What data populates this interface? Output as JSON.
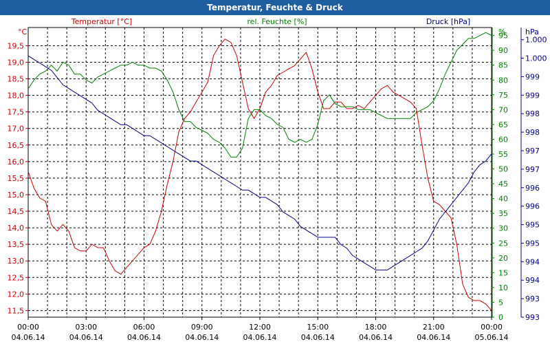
{
  "window": {
    "title": "Temperatur, Feuchte & Druck"
  },
  "chart_data": {
    "type": "line",
    "title": "Temperatur, Feuchte & Druck",
    "x_ticks": [
      {
        "time": "00:00",
        "date": "04.06.14"
      },
      {
        "time": "03:00",
        "date": "04.06.14"
      },
      {
        "time": "06:00",
        "date": "04.06.14"
      },
      {
        "time": "09:00",
        "date": "04.06.14"
      },
      {
        "time": "12:00",
        "date": "04.06.14"
      },
      {
        "time": "15:00",
        "date": "04.06.14"
      },
      {
        "time": "18:00",
        "date": "04.06.14"
      },
      {
        "time": "21:00",
        "date": "04.06.14"
      },
      {
        "time": "00:00",
        "date": "05.06.14"
      }
    ],
    "xlim": [
      0,
      24
    ],
    "axes": {
      "temperature": {
        "label": "Temperatur [°C]",
        "unit": "°C",
        "color": "#cc0000",
        "ylim": [
          11.3,
          20.05
        ],
        "ticks": [
          "11,5",
          "12,0",
          "12,5",
          "13,0",
          "13,5",
          "14,0",
          "14,5",
          "15,0",
          "15,5",
          "16,0",
          "16,5",
          "17,0",
          "17,5",
          "18,0",
          "18,5",
          "19,0",
          "19,5"
        ]
      },
      "humidity": {
        "label": "rel. Feuchte [%]",
        "unit": "%",
        "color": "#008000",
        "ylim": [
          0,
          97.7
        ],
        "ticks": [
          "0",
          "5",
          "10",
          "15",
          "20",
          "25",
          "30",
          "35",
          "40",
          "45",
          "50",
          "55",
          "60",
          "65",
          "70",
          "75",
          "80",
          "85",
          "90",
          "95"
        ]
      },
      "pressure": {
        "label": "Druck [hPa]",
        "unit": "hPa",
        "color": "#00008b",
        "ticks": [
          "993",
          "993",
          "994",
          "994",
          "995",
          "995",
          "996",
          "996",
          "997",
          "997",
          "998",
          "998",
          "999",
          "999",
          "1.000",
          "1.000"
        ]
      }
    },
    "series": [
      {
        "name": "Temperatur [°C]",
        "axis": "temperature",
        "color": "#cc0000",
        "x": [
          0,
          0.3,
          0.6,
          0.9,
          1.2,
          1.5,
          1.8,
          2.1,
          2.4,
          2.7,
          3.0,
          3.3,
          3.6,
          3.9,
          4.2,
          4.5,
          4.8,
          5.1,
          5.4,
          5.7,
          6.0,
          6.3,
          6.6,
          6.9,
          7.2,
          7.5,
          7.8,
          8.1,
          8.4,
          8.7,
          9.0,
          9.3,
          9.6,
          9.9,
          10.2,
          10.5,
          10.8,
          11.1,
          11.4,
          11.7,
          12.0,
          12.3,
          12.6,
          12.9,
          13.2,
          13.5,
          13.8,
          14.1,
          14.4,
          14.7,
          15.0,
          15.3,
          15.6,
          15.9,
          16.2,
          16.5,
          16.8,
          17.1,
          17.4,
          17.7,
          18.0,
          18.3,
          18.6,
          18.9,
          19.2,
          19.5,
          19.8,
          20.1,
          20.4,
          20.7,
          21.0,
          21.3,
          21.6,
          21.9,
          22.2,
          22.5,
          22.8,
          23.1,
          23.4,
          23.7,
          24.0
        ],
        "y": [
          15.7,
          15.2,
          14.9,
          14.8,
          14.1,
          13.9,
          14.1,
          13.9,
          13.4,
          13.3,
          13.3,
          13.5,
          13.4,
          13.4,
          13.0,
          12.7,
          12.6,
          12.8,
          13.0,
          13.2,
          13.4,
          13.5,
          13.9,
          14.5,
          15.3,
          16.0,
          16.9,
          17.3,
          17.5,
          17.8,
          18.1,
          18.4,
          19.2,
          19.5,
          19.7,
          19.6,
          19.2,
          18.4,
          17.6,
          17.3,
          17.6,
          18.1,
          18.3,
          18.6,
          18.7,
          18.8,
          18.9,
          19.1,
          19.3,
          18.8,
          18.1,
          17.6,
          17.6,
          17.8,
          17.8,
          17.6,
          17.6,
          17.7,
          17.6,
          17.8,
          18.0,
          18.2,
          18.3,
          18.1,
          18.0,
          17.9,
          17.8,
          17.6,
          16.5,
          15.5,
          14.8,
          14.7,
          14.5,
          14.3,
          13.5,
          12.3,
          11.9,
          11.8,
          11.8,
          11.7,
          11.5
        ]
      },
      {
        "name": "rel. Feuchte [%]",
        "axis": "humidity",
        "color": "#008000",
        "x": [
          0,
          0.3,
          0.6,
          0.9,
          1.2,
          1.5,
          1.8,
          2.1,
          2.4,
          2.7,
          3.0,
          3.3,
          3.6,
          3.9,
          4.2,
          4.5,
          4.8,
          5.1,
          5.4,
          5.7,
          6.0,
          6.3,
          6.6,
          6.9,
          7.2,
          7.5,
          7.8,
          8.1,
          8.4,
          8.7,
          9.0,
          9.3,
          9.6,
          9.9,
          10.2,
          10.5,
          10.8,
          11.1,
          11.4,
          11.7,
          12.0,
          12.3,
          12.6,
          12.9,
          13.2,
          13.5,
          13.8,
          14.1,
          14.4,
          14.7,
          15.0,
          15.3,
          15.6,
          15.9,
          16.2,
          16.5,
          16.8,
          17.1,
          17.4,
          17.7,
          18.0,
          18.3,
          18.6,
          18.9,
          19.2,
          19.5,
          19.8,
          20.1,
          20.4,
          20.7,
          21.0,
          21.3,
          21.6,
          21.9,
          22.2,
          22.5,
          22.8,
          23.1,
          23.4,
          23.7,
          24.0
        ],
        "y": [
          77,
          80,
          82,
          83,
          85,
          83,
          86,
          85,
          82,
          82,
          80,
          79,
          81,
          82,
          83,
          84,
          85,
          85,
          86,
          85,
          85,
          84,
          84,
          83,
          80,
          76,
          70,
          66,
          66,
          64,
          63,
          62,
          60,
          59,
          57,
          54,
          54,
          57,
          67,
          70,
          70,
          68,
          67,
          65,
          64,
          60,
          59,
          60,
          59,
          60,
          65,
          73,
          75,
          72,
          71,
          71,
          71,
          70,
          70,
          70,
          69,
          68,
          67,
          67,
          67,
          67,
          67,
          69,
          70,
          71,
          73,
          77,
          82,
          86,
          90,
          92,
          94,
          94,
          95,
          96,
          95
        ]
      },
      {
        "name": "Druck [hPa]",
        "axis": "pressure",
        "color": "#00008b",
        "x": [
          0,
          0.3,
          0.6,
          0.9,
          1.2,
          1.5,
          1.8,
          2.1,
          2.4,
          2.7,
          3.0,
          3.3,
          3.6,
          3.9,
          4.2,
          4.5,
          4.8,
          5.1,
          5.4,
          5.7,
          6.0,
          6.3,
          6.6,
          6.9,
          7.2,
          7.5,
          7.8,
          8.1,
          8.4,
          8.7,
          9.0,
          9.3,
          9.6,
          9.9,
          10.2,
          10.5,
          10.8,
          11.1,
          11.4,
          11.7,
          12.0,
          12.3,
          12.6,
          12.9,
          13.2,
          13.5,
          13.8,
          14.1,
          14.4,
          14.7,
          15.0,
          15.3,
          15.6,
          15.9,
          16.2,
          16.5,
          16.8,
          17.1,
          17.4,
          17.7,
          18.0,
          18.3,
          18.6,
          18.9,
          19.2,
          19.5,
          19.8,
          20.1,
          20.4,
          20.7,
          21.0,
          21.3,
          21.6,
          21.9,
          22.2,
          22.5,
          22.8,
          23.1,
          23.4,
          23.7,
          24.0
        ],
        "y": [
          1000.2,
          1000.1,
          1000.0,
          999.9,
          999.8,
          999.6,
          999.4,
          999.3,
          999.2,
          999.1,
          999.0,
          998.9,
          998.7,
          998.6,
          998.5,
          998.4,
          998.3,
          998.3,
          998.2,
          998.1,
          998.0,
          998.0,
          997.9,
          997.8,
          997.7,
          997.6,
          997.5,
          997.4,
          997.3,
          997.3,
          997.2,
          997.1,
          997.0,
          996.9,
          996.8,
          996.7,
          996.6,
          996.5,
          996.5,
          996.4,
          996.3,
          996.3,
          996.2,
          996.1,
          995.9,
          995.8,
          995.7,
          995.5,
          995.4,
          995.3,
          995.2,
          995.2,
          995.2,
          995.2,
          995.0,
          994.9,
          994.7,
          994.6,
          994.5,
          994.4,
          994.3,
          994.3,
          994.3,
          994.4,
          994.5,
          994.6,
          994.7,
          994.8,
          994.9,
          995.1,
          995.4,
          995.7,
          995.9,
          996.1,
          996.3,
          996.5,
          996.7,
          997.0,
          997.2,
          997.3,
          997.5
        ]
      }
    ],
    "grid": true
  }
}
